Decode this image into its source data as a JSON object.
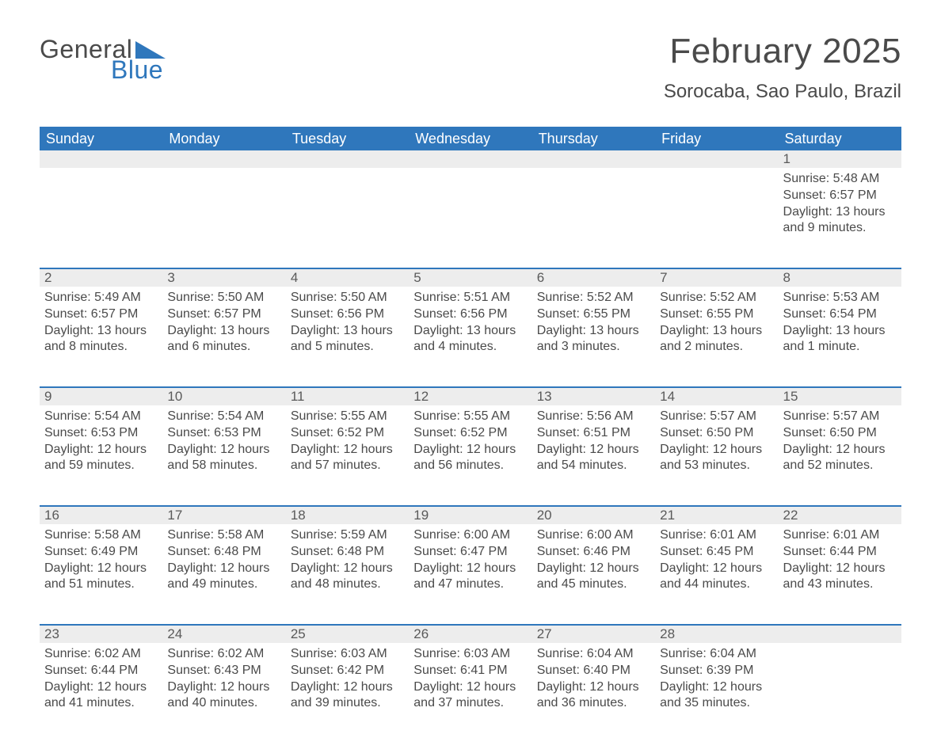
{
  "logo": {
    "text_general": "General",
    "text_blue": "Blue",
    "triangle_color": "#2f77bc",
    "text_color_general": "#4a4a4a",
    "text_color_blue": "#2f77bc"
  },
  "title": "February 2025",
  "location": "Sorocaba, Sao Paulo, Brazil",
  "colors": {
    "header_bg": "#2f77bc",
    "header_text": "#ffffff",
    "daynum_strip_bg": "#ededed",
    "rule_color": "#2f77bc",
    "body_text": "#4a4a4a",
    "page_bg": "#ffffff"
  },
  "typography": {
    "title_fontsize_pt": 33,
    "location_fontsize_pt": 18,
    "header_fontsize_pt": 14,
    "daynum_fontsize_pt": 13,
    "body_fontsize_pt": 12
  },
  "day_headers": [
    "Sunday",
    "Monday",
    "Tuesday",
    "Wednesday",
    "Thursday",
    "Friday",
    "Saturday"
  ],
  "labels": {
    "sunrise_prefix": "Sunrise: ",
    "sunset_prefix": "Sunset: ",
    "daylight_prefix": "Daylight: "
  },
  "weeks": [
    [
      null,
      null,
      null,
      null,
      null,
      null,
      {
        "num": "1",
        "sunrise": "5:48 AM",
        "sunset": "6:57 PM",
        "daylight": "13 hours and 9 minutes."
      }
    ],
    [
      {
        "num": "2",
        "sunrise": "5:49 AM",
        "sunset": "6:57 PM",
        "daylight": "13 hours and 8 minutes."
      },
      {
        "num": "3",
        "sunrise": "5:50 AM",
        "sunset": "6:57 PM",
        "daylight": "13 hours and 6 minutes."
      },
      {
        "num": "4",
        "sunrise": "5:50 AM",
        "sunset": "6:56 PM",
        "daylight": "13 hours and 5 minutes."
      },
      {
        "num": "5",
        "sunrise": "5:51 AM",
        "sunset": "6:56 PM",
        "daylight": "13 hours and 4 minutes."
      },
      {
        "num": "6",
        "sunrise": "5:52 AM",
        "sunset": "6:55 PM",
        "daylight": "13 hours and 3 minutes."
      },
      {
        "num": "7",
        "sunrise": "5:52 AM",
        "sunset": "6:55 PM",
        "daylight": "13 hours and 2 minutes."
      },
      {
        "num": "8",
        "sunrise": "5:53 AM",
        "sunset": "6:54 PM",
        "daylight": "13 hours and 1 minute."
      }
    ],
    [
      {
        "num": "9",
        "sunrise": "5:54 AM",
        "sunset": "6:53 PM",
        "daylight": "12 hours and 59 minutes."
      },
      {
        "num": "10",
        "sunrise": "5:54 AM",
        "sunset": "6:53 PM",
        "daylight": "12 hours and 58 minutes."
      },
      {
        "num": "11",
        "sunrise": "5:55 AM",
        "sunset": "6:52 PM",
        "daylight": "12 hours and 57 minutes."
      },
      {
        "num": "12",
        "sunrise": "5:55 AM",
        "sunset": "6:52 PM",
        "daylight": "12 hours and 56 minutes."
      },
      {
        "num": "13",
        "sunrise": "5:56 AM",
        "sunset": "6:51 PM",
        "daylight": "12 hours and 54 minutes."
      },
      {
        "num": "14",
        "sunrise": "5:57 AM",
        "sunset": "6:50 PM",
        "daylight": "12 hours and 53 minutes."
      },
      {
        "num": "15",
        "sunrise": "5:57 AM",
        "sunset": "6:50 PM",
        "daylight": "12 hours and 52 minutes."
      }
    ],
    [
      {
        "num": "16",
        "sunrise": "5:58 AM",
        "sunset": "6:49 PM",
        "daylight": "12 hours and 51 minutes."
      },
      {
        "num": "17",
        "sunrise": "5:58 AM",
        "sunset": "6:48 PM",
        "daylight": "12 hours and 49 minutes."
      },
      {
        "num": "18",
        "sunrise": "5:59 AM",
        "sunset": "6:48 PM",
        "daylight": "12 hours and 48 minutes."
      },
      {
        "num": "19",
        "sunrise": "6:00 AM",
        "sunset": "6:47 PM",
        "daylight": "12 hours and 47 minutes."
      },
      {
        "num": "20",
        "sunrise": "6:00 AM",
        "sunset": "6:46 PM",
        "daylight": "12 hours and 45 minutes."
      },
      {
        "num": "21",
        "sunrise": "6:01 AM",
        "sunset": "6:45 PM",
        "daylight": "12 hours and 44 minutes."
      },
      {
        "num": "22",
        "sunrise": "6:01 AM",
        "sunset": "6:44 PM",
        "daylight": "12 hours and 43 minutes."
      }
    ],
    [
      {
        "num": "23",
        "sunrise": "6:02 AM",
        "sunset": "6:44 PM",
        "daylight": "12 hours and 41 minutes."
      },
      {
        "num": "24",
        "sunrise": "6:02 AM",
        "sunset": "6:43 PM",
        "daylight": "12 hours and 40 minutes."
      },
      {
        "num": "25",
        "sunrise": "6:03 AM",
        "sunset": "6:42 PM",
        "daylight": "12 hours and 39 minutes."
      },
      {
        "num": "26",
        "sunrise": "6:03 AM",
        "sunset": "6:41 PM",
        "daylight": "12 hours and 37 minutes."
      },
      {
        "num": "27",
        "sunrise": "6:04 AM",
        "sunset": "6:40 PM",
        "daylight": "12 hours and 36 minutes."
      },
      {
        "num": "28",
        "sunrise": "6:04 AM",
        "sunset": "6:39 PM",
        "daylight": "12 hours and 35 minutes."
      },
      null
    ]
  ]
}
